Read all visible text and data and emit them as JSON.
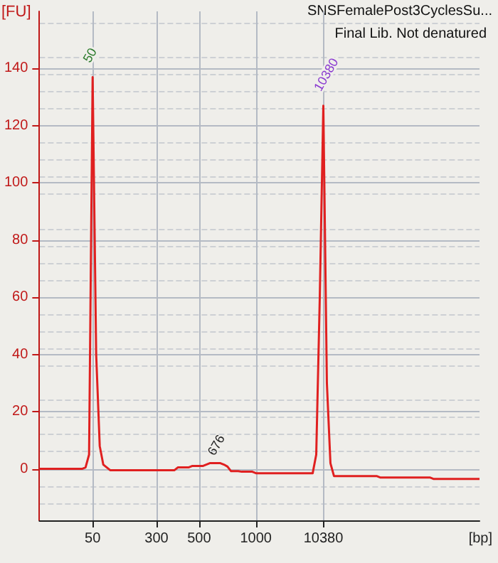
{
  "chart_data": {
    "type": "line",
    "title": "SNSFemalePost3CyclesSu...",
    "subtitle": "Final Lib. Not denatured",
    "xlabel": "[bp]",
    "ylabel": "[FU]",
    "categories": [
      null,
      null,
      null,
      null,
      null,
      null,
      null,
      null,
      null,
      null,
      null,
      null,
      null,
      null,
      null,
      "50",
      null,
      null,
      null,
      null,
      null,
      null,
      null,
      null,
      null,
      null,
      null,
      null,
      null,
      null,
      null,
      null,
      null,
      "300",
      null,
      null,
      null,
      null,
      null,
      null,
      null,
      null,
      null,
      null,
      null,
      "500",
      null,
      null,
      null,
      null,
      null,
      null,
      null,
      null,
      null,
      null,
      null,
      null,
      null,
      null,
      null,
      "1000",
      null,
      null,
      null,
      null,
      null,
      null,
      null,
      null,
      null,
      null,
      null,
      null,
      null,
      null,
      null,
      null,
      null,
      null,
      "10380",
      null,
      null,
      null,
      null,
      null,
      null,
      null,
      null,
      null,
      null,
      null,
      null,
      null,
      null,
      null,
      null,
      null,
      null,
      null,
      null,
      null,
      null,
      null,
      null,
      null,
      null,
      null,
      null,
      null,
      null,
      null,
      null,
      null,
      null,
      null,
      null,
      null,
      null,
      null,
      null,
      null,
      null,
      null,
      null
    ],
    "series": [
      {
        "color": "#e02020",
        "values": [
          0,
          0,
          0,
          0,
          0,
          0,
          0,
          0,
          0,
          0,
          0,
          0,
          0,
          0.5,
          5,
          137,
          40,
          8,
          1.5,
          0.5,
          -0.5,
          -0.5,
          -0.5,
          -0.5,
          -0.5,
          -0.5,
          -0.5,
          -0.5,
          -0.5,
          -0.5,
          -0.5,
          -0.5,
          -0.5,
          -0.5,
          -0.5,
          -0.5,
          -0.5,
          -0.5,
          -0.5,
          0.5,
          0.5,
          0.5,
          0.5,
          1,
          1,
          1,
          1,
          1.5,
          2,
          2,
          2,
          2,
          1.5,
          0.8,
          -0.8,
          -0.8,
          -0.8,
          -1,
          -1,
          -1,
          -1,
          -1.5,
          -1.5,
          -1.5,
          -1.5,
          -1.5,
          -1.5,
          -1.5,
          -1.5,
          -1.5,
          -1.5,
          -1.5,
          -1.5,
          -1.5,
          -1.5,
          -1.5,
          -1.5,
          -1.5,
          5,
          60,
          127,
          30,
          2,
          -2.5,
          -2.5,
          -2.5,
          -2.5,
          -2.5,
          -2.5,
          -2.5,
          -2.5,
          -2.5,
          -2.5,
          -2.5,
          -2.5,
          -2.5,
          -3,
          -3,
          -3,
          -3,
          -3,
          -3,
          -3,
          -3,
          -3,
          -3,
          -3,
          -3,
          -3,
          -3,
          -3,
          -3.5,
          -3.5,
          -3.5,
          -3.5,
          -3.5,
          -3.5,
          -3.5,
          -3.5,
          -3.5,
          -3.5,
          -3.5,
          -3.5,
          -3.5,
          -3.5
        ]
      }
    ],
    "annotations": [
      {
        "text": "50",
        "x": "50",
        "y": 137
      },
      {
        "text": "676",
        "y": 2
      },
      {
        "text": "10380",
        "x": "10380",
        "y": 127
      }
    ],
    "ylim": [
      -18,
      160
    ],
    "yticks": [
      0,
      20,
      40,
      60,
      80,
      100,
      120,
      140
    ],
    "grid": true,
    "marker": "none",
    "line_style": "solid"
  }
}
